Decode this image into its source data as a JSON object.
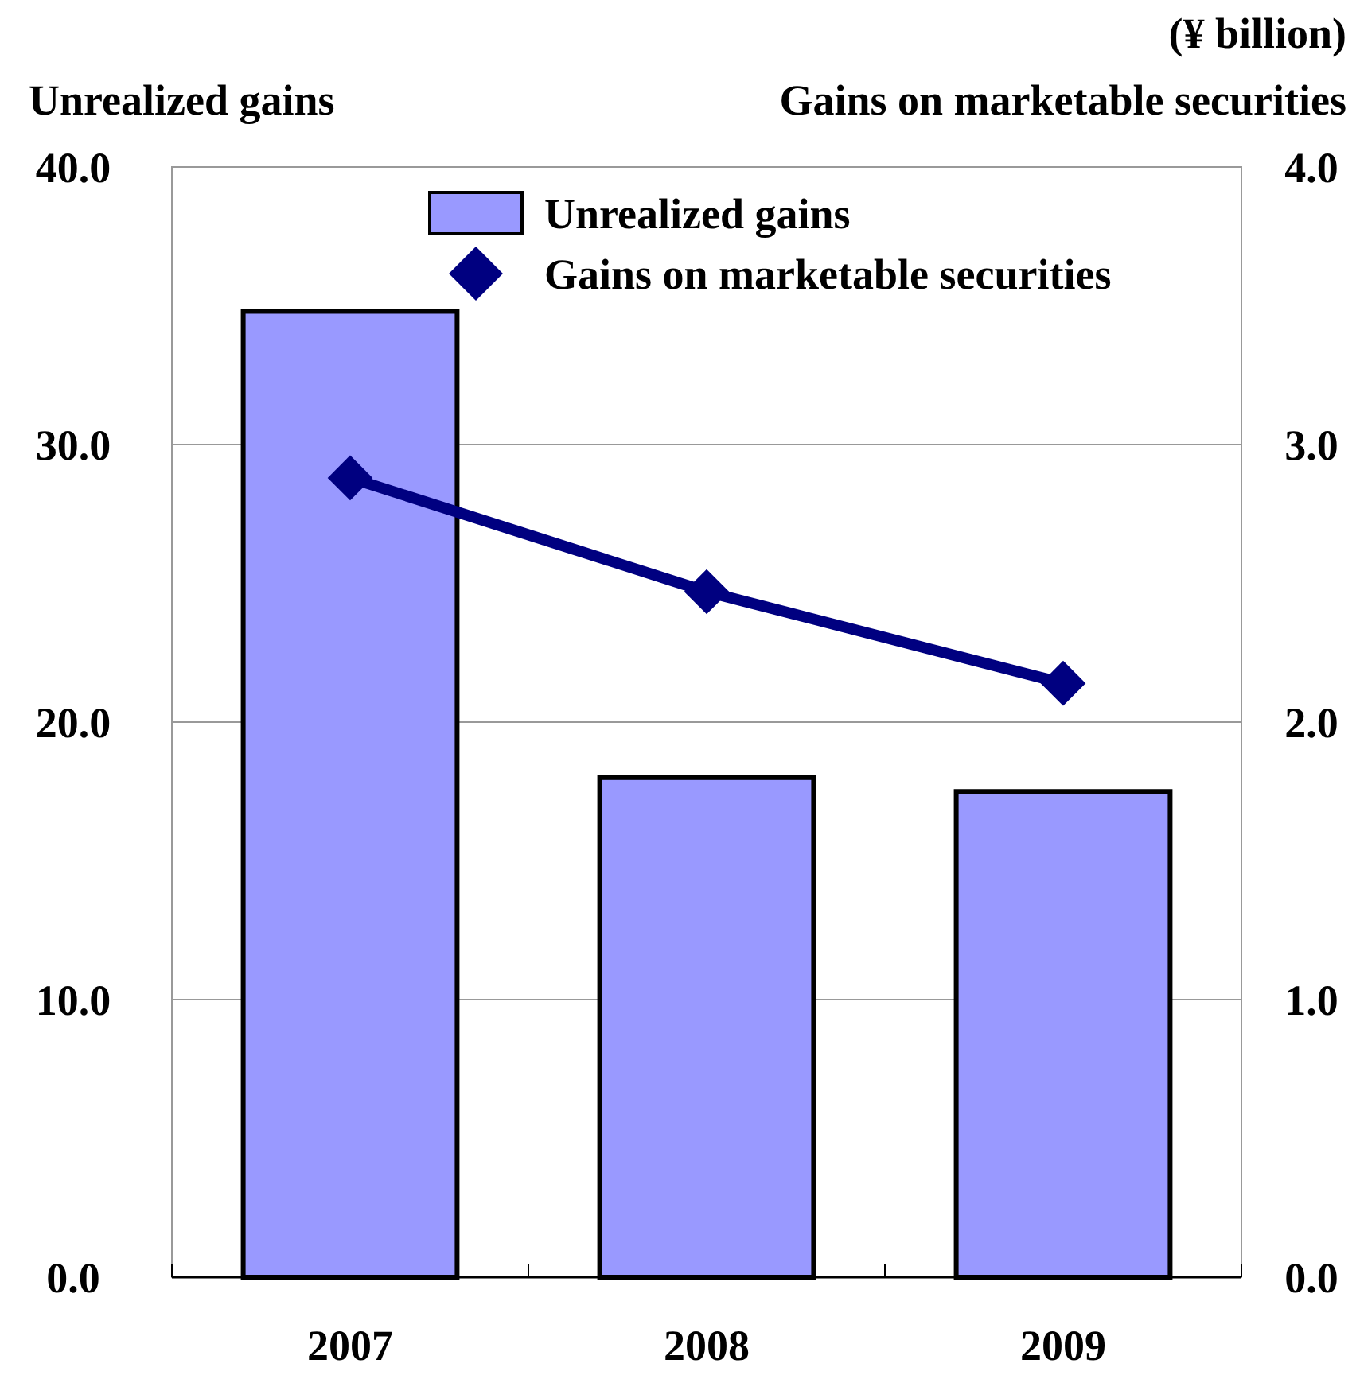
{
  "chart_data": {
    "type": "bar",
    "ylabel": "Unrealized gains",
    "y2label": "Gains on marketable securities",
    "annotations": [
      "(¥ billion)"
    ],
    "categories": [
      "2007",
      "2008",
      "2009"
    ],
    "series": [
      {
        "name": "Unrealized gains",
        "color": "#9999ff",
        "values": [
          34.8,
          18.0,
          17.5
        ]
      },
      {
        "name": "Gains on marketable securities",
        "type": "line",
        "axis": "y2",
        "color": "#000080",
        "values": [
          2.88,
          2.47,
          2.14
        ]
      }
    ],
    "ylim": [
      0,
      40
    ],
    "yticks": [
      {
        "value": 0,
        "label": "0.0"
      },
      {
        "value": 10,
        "label": "10.0"
      },
      {
        "value": 20,
        "label": "20.0"
      },
      {
        "value": 30,
        "label": "30.0"
      },
      {
        "value": 40,
        "label": "40.0"
      }
    ],
    "y2lim": [
      0,
      4
    ],
    "y2ticks": [
      {
        "value": 0,
        "label": "0.0"
      },
      {
        "value": 1,
        "label": "1.0"
      },
      {
        "value": 2,
        "label": "2.0"
      },
      {
        "value": 3,
        "label": "3.0"
      },
      {
        "value": 4,
        "label": "4.0"
      }
    ],
    "grid": "y",
    "legend": "top",
    "marker": "diamond"
  }
}
